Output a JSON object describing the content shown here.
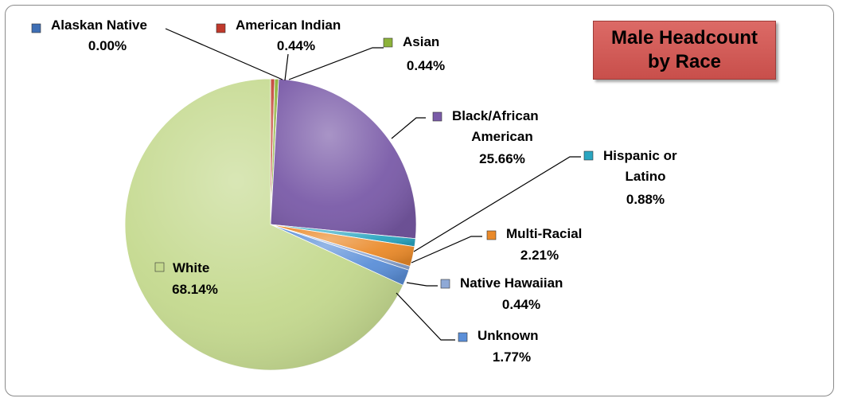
{
  "chart_data": {
    "type": "pie",
    "title": "Male Headcount by Race",
    "slices": [
      {
        "label": "Alaskan Native",
        "pct_label": "0.00%",
        "value": 0.0,
        "color": "#3f6fb5"
      },
      {
        "label": "American Indian",
        "pct_label": "0.44%",
        "value": 0.44,
        "color": "#c0392b"
      },
      {
        "label": "Asian",
        "pct_label": "0.44%",
        "value": 0.44,
        "color": "#8db33a"
      },
      {
        "label": "Black/African American",
        "pct_label": "25.66%",
        "value": 25.66,
        "color": "#7a5ba8"
      },
      {
        "label": "Hispanic or Latino",
        "pct_label": "0.88%",
        "value": 0.88,
        "color": "#2aa5c0"
      },
      {
        "label": "Multi-Racial",
        "pct_label": "2.21%",
        "value": 2.21,
        "color": "#ea8a2a"
      },
      {
        "label": "Native Hawaiian",
        "pct_label": "0.44%",
        "value": 0.44,
        "color": "#8fa9d6"
      },
      {
        "label": "Unknown",
        "pct_label": "1.77%",
        "value": 1.77,
        "color": "#5b8fd8"
      },
      {
        "label": "White",
        "pct_label": "68.14%",
        "value": 68.14,
        "color": "#c4d98e"
      }
    ]
  }
}
